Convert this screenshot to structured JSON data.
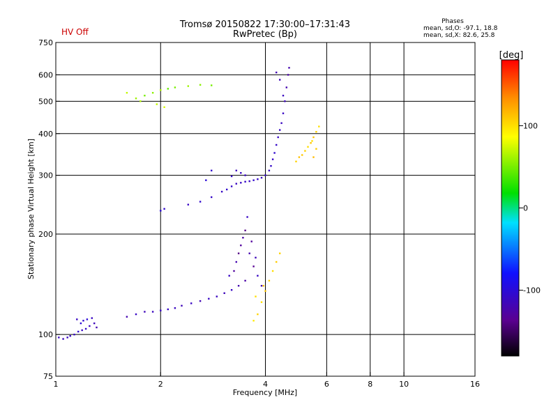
{
  "header": {
    "title": "Tromsø 20150822 17:30:00–17:31:43",
    "subtitle": "RwPretec (Bp)",
    "status": "HV Off",
    "status_color": "#cc0000",
    "stats_title": "Phases",
    "stats_o": "mean, sd,O: -97.1, 18.8",
    "stats_x": "mean, sd,X: 82.6, 25.8"
  },
  "chart_data": {
    "type": "scatter",
    "xlabel": "Frequency [MHz]",
    "ylabel": "Stationary phase Virtual Height [km]",
    "x_scale": "log",
    "y_scale": "log",
    "xlim": [
      1,
      16
    ],
    "ylim": [
      75,
      750
    ],
    "x_ticks": [
      1,
      2,
      4,
      6,
      8,
      10,
      16
    ],
    "x_tick_labels": [
      "1",
      "2",
      "4",
      "6",
      "8",
      "10",
      "16"
    ],
    "y_ticks": [
      75,
      100,
      200,
      300,
      400,
      500,
      600,
      750
    ],
    "y_tick_labels": [
      "75",
      "100",
      "200",
      "300",
      "400",
      "500",
      "600",
      "750"
    ],
    "x_gridlines": [
      2,
      4,
      6,
      8,
      10
    ],
    "y_gridlines": [
      100,
      200,
      300,
      400,
      500,
      600
    ],
    "grid": true,
    "colorbar": {
      "label": "[deg]",
      "range": [
        -180,
        180
      ],
      "ticks": [
        100,
        0,
        -100
      ],
      "tick_labels": [
        "100",
        "0",
        "-100"
      ]
    },
    "series": [
      {
        "points": [
          [
            1.02,
            98,
            -110
          ],
          [
            1.05,
            97,
            -115
          ],
          [
            1.08,
            98,
            -112
          ],
          [
            1.1,
            99,
            -108
          ],
          [
            1.13,
            100,
            -110
          ],
          [
            1.16,
            102,
            -105
          ],
          [
            1.19,
            103,
            -110
          ],
          [
            1.22,
            104,
            -108
          ],
          [
            1.25,
            106,
            -112
          ],
          [
            1.18,
            108,
            -100
          ],
          [
            1.2,
            110,
            -105
          ],
          [
            1.23,
            111,
            -100
          ],
          [
            1.27,
            112,
            -110
          ],
          [
            1.29,
            108,
            -115
          ],
          [
            1.15,
            111,
            -110
          ],
          [
            1.31,
            105,
            -120
          ],
          [
            1.6,
            113,
            -120
          ],
          [
            1.7,
            115,
            -110
          ],
          [
            1.8,
            117,
            -115
          ],
          [
            1.9,
            117,
            -112
          ],
          [
            2.0,
            118,
            -110
          ],
          [
            2.1,
            119,
            -108
          ],
          [
            2.2,
            120,
            -112
          ],
          [
            2.3,
            122,
            -115
          ],
          [
            2.45,
            124,
            -110
          ],
          [
            2.6,
            126,
            -118
          ],
          [
            2.75,
            128,
            -110
          ],
          [
            2.9,
            130,
            -112
          ],
          [
            3.05,
            133,
            -115
          ],
          [
            3.2,
            136,
            -110
          ],
          [
            3.35,
            140,
            -120
          ],
          [
            3.5,
            145,
            -125
          ],
          [
            3.15,
            150,
            -110
          ],
          [
            3.25,
            155,
            -130
          ],
          [
            3.3,
            165,
            -120
          ],
          [
            3.35,
            175,
            -140
          ],
          [
            3.4,
            185,
            -130
          ],
          [
            3.45,
            195,
            -125
          ],
          [
            3.5,
            205,
            -140
          ],
          [
            3.55,
            225,
            -110
          ],
          [
            3.6,
            175,
            -120
          ],
          [
            3.7,
            160,
            -135
          ],
          [
            3.8,
            150,
            -110
          ],
          [
            3.9,
            140,
            -120
          ],
          [
            3.65,
            190,
            -130
          ],
          [
            3.75,
            170,
            -115
          ],
          [
            2.0,
            235,
            -100
          ],
          [
            2.05,
            238,
            -105
          ],
          [
            2.4,
            245,
            -110
          ],
          [
            2.6,
            250,
            -105
          ],
          [
            2.8,
            258,
            -108
          ],
          [
            3.0,
            268,
            -110
          ],
          [
            3.1,
            272,
            -105
          ],
          [
            3.2,
            278,
            -108
          ],
          [
            3.3,
            283,
            -112
          ],
          [
            3.4,
            285,
            -110
          ],
          [
            3.5,
            287,
            -108
          ],
          [
            3.6,
            288,
            -110
          ],
          [
            3.7,
            290,
            -105
          ],
          [
            3.8,
            292,
            -108
          ],
          [
            3.9,
            295,
            -110
          ],
          [
            4.0,
            300,
            -108
          ],
          [
            4.1,
            310,
            -110
          ],
          [
            4.15,
            320,
            -108
          ],
          [
            4.2,
            335,
            -110
          ],
          [
            4.25,
            350,
            -105
          ],
          [
            4.3,
            370,
            -108
          ],
          [
            4.35,
            390,
            -110
          ],
          [
            4.4,
            410,
            -108
          ],
          [
            4.45,
            430,
            -112
          ],
          [
            4.5,
            460,
            -110
          ],
          [
            4.55,
            500,
            -115
          ],
          [
            4.6,
            550,
            -120
          ],
          [
            4.65,
            600,
            -125
          ],
          [
            4.68,
            630,
            -120
          ],
          [
            4.3,
            610,
            -118
          ],
          [
            4.4,
            580,
            -115
          ],
          [
            4.5,
            520,
            -112
          ],
          [
            3.3,
            310,
            -115
          ],
          [
            3.4,
            305,
            -110
          ],
          [
            3.5,
            300,
            -112
          ],
          [
            3.2,
            298,
            -108
          ],
          [
            2.7,
            290,
            -100
          ],
          [
            2.8,
            310,
            -105
          ]
        ]
      },
      {
        "points": [
          [
            5.1,
            345,
            110
          ],
          [
            5.2,
            355,
            105
          ],
          [
            5.3,
            365,
            100
          ],
          [
            5.4,
            375,
            110
          ],
          [
            5.5,
            390,
            112
          ],
          [
            5.6,
            405,
            105
          ],
          [
            5.7,
            420,
            100
          ],
          [
            5.5,
            340,
            115
          ],
          [
            5.6,
            360,
            108
          ],
          [
            4.9,
            330,
            105
          ],
          [
            5.0,
            340,
            112
          ],
          [
            5.45,
            380,
            100
          ],
          [
            3.7,
            110,
            95
          ],
          [
            3.8,
            115,
            105
          ],
          [
            3.9,
            125,
            100
          ],
          [
            4.0,
            135,
            110
          ],
          [
            4.1,
            145,
            105
          ],
          [
            4.2,
            155,
            100
          ],
          [
            4.3,
            165,
            108
          ],
          [
            3.75,
            130,
            100
          ],
          [
            3.95,
            140,
            112
          ],
          [
            4.4,
            175,
            105
          ],
          [
            1.7,
            510,
            60
          ],
          [
            1.8,
            520,
            50
          ],
          [
            1.9,
            530,
            55
          ],
          [
            2.0,
            540,
            65
          ],
          [
            2.1,
            545,
            45
          ],
          [
            2.2,
            550,
            50
          ],
          [
            2.4,
            555,
            60
          ],
          [
            2.6,
            560,
            55
          ],
          [
            2.8,
            558,
            50
          ],
          [
            1.6,
            530,
            70
          ],
          [
            1.75,
            500,
            65
          ],
          [
            1.95,
            490,
            70
          ],
          [
            2.05,
            480,
            75
          ]
        ]
      }
    ]
  }
}
